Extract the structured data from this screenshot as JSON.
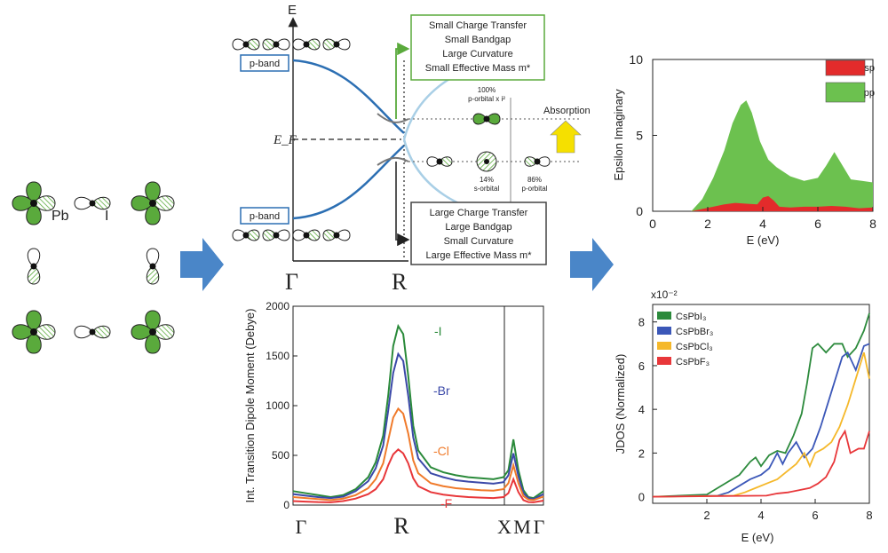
{
  "colors": {
    "green": "#5aaa3c",
    "blue_band": "#2c6fb3",
    "light_band": "#a9cfe6",
    "arrow_blue": "#4a86c8",
    "yellow": "#f5e000",
    "sp_red": "#e32b2b",
    "pp_green": "#6cc14f",
    "I": "#2a8a3a",
    "Br": "#3b49a8",
    "Cl": "#f07a2a",
    "F": "#e8373a",
    "CsPbI3": "#2c8a3c",
    "CsPbBr3": "#3b57b8",
    "CsPbCl3": "#f5b82a",
    "CsPbF3": "#e8373a"
  },
  "orbitals": {
    "pb_label": "Pb",
    "i_label": "I"
  },
  "band": {
    "e_axis": "E",
    "ef_label": "E_F",
    "gamma": "Γ",
    "r": "R",
    "pband_top": "p-band",
    "pband_bottom": "p-band",
    "box_top": [
      "Small Charge Transfer",
      "Small Bandgap",
      "Large Curvature",
      "Small Effective Mass m*"
    ],
    "box_bottom": [
      "Large Charge Transfer",
      "Large Bandgap",
      "Small Curvature",
      "Large Effective Mass m*"
    ],
    "upper_pct": "100%",
    "upper_desc": "p-orbital x i²",
    "absorption": "Absorption",
    "lower_s_pct": "14%",
    "lower_s_desc": "s-orbital",
    "lower_p_pct": "86%",
    "lower_p_desc": "p-orbital"
  },
  "chart_data": [
    {
      "type": "line",
      "title": "",
      "xlabel": "",
      "ylabel": "Int. Transition Dipole Moment (Debye)",
      "ylim": [
        0,
        2000
      ],
      "yticks": [
        0,
        500,
        1000,
        1500,
        2000
      ],
      "xticks": [
        "Γ",
        "R",
        "X",
        "M",
        "Γ"
      ],
      "series_labels": [
        "-I",
        "-Br",
        "-Cl",
        "-F"
      ],
      "series": [
        {
          "name": "-I",
          "x": [
            0,
            0.05,
            0.1,
            0.15,
            0.2,
            0.25,
            0.3,
            0.33,
            0.36,
            0.38,
            0.4,
            0.42,
            0.44,
            0.46,
            0.48,
            0.5,
            0.55,
            0.6,
            0.65,
            0.7,
            0.75,
            0.8,
            0.84,
            0.86,
            0.88,
            0.9,
            0.92,
            0.94,
            0.96,
            1.0
          ],
          "y": [
            140,
            120,
            100,
            80,
            100,
            160,
            280,
            430,
            700,
            1100,
            1600,
            1800,
            1720,
            1300,
            800,
            550,
            380,
            330,
            300,
            280,
            270,
            260,
            280,
            350,
            660,
            350,
            150,
            80,
            70,
            140
          ]
        },
        {
          "name": "-Br",
          "x": [
            0,
            0.05,
            0.1,
            0.15,
            0.2,
            0.25,
            0.3,
            0.33,
            0.36,
            0.38,
            0.4,
            0.42,
            0.44,
            0.46,
            0.48,
            0.5,
            0.55,
            0.6,
            0.65,
            0.7,
            0.75,
            0.8,
            0.84,
            0.86,
            0.88,
            0.9,
            0.92,
            0.94,
            0.96,
            1.0
          ],
          "y": [
            110,
            95,
            80,
            70,
            85,
            140,
            240,
            370,
            600,
            950,
            1330,
            1520,
            1450,
            1100,
            680,
            470,
            320,
            280,
            250,
            235,
            225,
            215,
            230,
            300,
            520,
            290,
            120,
            70,
            60,
            110
          ]
        },
        {
          "name": "-Cl",
          "x": [
            0,
            0.05,
            0.1,
            0.15,
            0.2,
            0.25,
            0.3,
            0.33,
            0.36,
            0.38,
            0.4,
            0.42,
            0.44,
            0.46,
            0.48,
            0.5,
            0.55,
            0.6,
            0.65,
            0.7,
            0.75,
            0.8,
            0.84,
            0.86,
            0.88,
            0.9,
            0.92,
            0.94,
            0.96,
            1.0
          ],
          "y": [
            80,
            70,
            60,
            50,
            65,
            100,
            170,
            260,
            420,
            650,
            880,
            970,
            920,
            720,
            450,
            320,
            220,
            190,
            170,
            160,
            150,
            145,
            160,
            220,
            400,
            220,
            90,
            55,
            50,
            85
          ]
        },
        {
          "name": "-F",
          "x": [
            0,
            0.05,
            0.1,
            0.15,
            0.2,
            0.25,
            0.3,
            0.33,
            0.36,
            0.38,
            0.4,
            0.42,
            0.44,
            0.46,
            0.48,
            0.5,
            0.55,
            0.6,
            0.65,
            0.7,
            0.75,
            0.8,
            0.84,
            0.86,
            0.88,
            0.9,
            0.92,
            0.94,
            0.96,
            1.0
          ],
          "y": [
            40,
            35,
            30,
            28,
            40,
            65,
            110,
            160,
            260,
            400,
            510,
            560,
            520,
            420,
            270,
            190,
            130,
            105,
            90,
            80,
            75,
            70,
            80,
            120,
            260,
            130,
            50,
            30,
            28,
            45
          ]
        }
      ]
    },
    {
      "type": "area",
      "title": "",
      "xlabel": "E (eV)",
      "ylabel": "Epsilon Imaginary",
      "xlim": [
        0,
        8
      ],
      "ylim": [
        0,
        10
      ],
      "xticks": [
        0,
        2,
        4,
        6,
        8
      ],
      "yticks": [
        0,
        5,
        10
      ],
      "legend": "top-right",
      "series": [
        {
          "name": "sp",
          "x": [
            1.4,
            1.8,
            2.2,
            2.6,
            3.0,
            3.4,
            3.8,
            4.0,
            4.2,
            4.4,
            4.6,
            5.0,
            5.5,
            6.0,
            6.5,
            7.0,
            7.5,
            8.0
          ],
          "y": [
            0.0,
            0.15,
            0.3,
            0.45,
            0.55,
            0.5,
            0.45,
            0.9,
            1.0,
            0.7,
            0.3,
            0.25,
            0.3,
            0.3,
            0.35,
            0.3,
            0.2,
            0.25
          ]
        },
        {
          "name": "pp",
          "x": [
            1.4,
            1.8,
            2.2,
            2.6,
            2.9,
            3.2,
            3.4,
            3.6,
            3.9,
            4.2,
            4.5,
            5.0,
            5.5,
            6.0,
            6.3,
            6.6,
            6.9,
            7.2,
            7.6,
            8.0
          ],
          "y": [
            0.0,
            0.8,
            2.2,
            4.0,
            5.8,
            7.0,
            7.3,
            6.5,
            4.6,
            3.4,
            2.9,
            2.3,
            2.0,
            2.2,
            3.0,
            3.9,
            3.0,
            2.1,
            2.0,
            1.9
          ]
        }
      ]
    },
    {
      "type": "line",
      "title": "",
      "xlabel": "E (eV)",
      "ylabel": "JDOS (Normalized)",
      "y_multiplier": "x10⁻²",
      "xlim": [
        0,
        8
      ],
      "ylim": [
        -0.3,
        8.8
      ],
      "xticks": [
        2,
        4,
        6,
        8
      ],
      "yticks": [
        0,
        2,
        4,
        6,
        8
      ],
      "legend": "top-left",
      "series": [
        {
          "name": "CsPbI₃",
          "x": [
            0,
            2.0,
            2.4,
            2.8,
            3.2,
            3.6,
            3.8,
            4.0,
            4.3,
            4.6,
            4.9,
            5.2,
            5.5,
            5.7,
            5.9,
            6.1,
            6.4,
            6.7,
            7.0,
            7.2,
            7.5,
            7.8,
            8.0
          ],
          "y": [
            0,
            0.1,
            0.4,
            0.7,
            1.0,
            1.6,
            1.8,
            1.4,
            1.9,
            2.1,
            2.0,
            2.8,
            3.8,
            5.2,
            6.8,
            7.0,
            6.6,
            7.0,
            7.0,
            6.4,
            6.8,
            7.6,
            8.4
          ]
        },
        {
          "name": "CsPbBr₃",
          "x": [
            0,
            2.4,
            2.8,
            3.2,
            3.6,
            4.0,
            4.3,
            4.6,
            4.8,
            5.0,
            5.3,
            5.6,
            5.9,
            6.2,
            6.5,
            6.8,
            7.0,
            7.2,
            7.5,
            7.8,
            8.0
          ],
          "y": [
            0,
            0.05,
            0.2,
            0.5,
            0.8,
            1.0,
            1.3,
            2.0,
            1.5,
            2.0,
            2.5,
            1.8,
            2.2,
            3.2,
            4.4,
            5.6,
            6.4,
            6.6,
            5.8,
            6.9,
            7.0
          ]
        },
        {
          "name": "CsPbCl₃",
          "x": [
            0,
            3.0,
            3.4,
            3.8,
            4.2,
            4.6,
            5.0,
            5.3,
            5.6,
            5.8,
            6.0,
            6.3,
            6.6,
            6.9,
            7.2,
            7.5,
            7.8,
            8.0
          ],
          "y": [
            0,
            0.05,
            0.2,
            0.4,
            0.6,
            0.8,
            1.2,
            1.5,
            2.0,
            1.4,
            2.0,
            2.2,
            2.5,
            3.2,
            4.2,
            5.4,
            6.6,
            5.4
          ]
        },
        {
          "name": "CsPbF₃",
          "x": [
            0,
            4.2,
            4.6,
            5.0,
            5.4,
            5.8,
            6.1,
            6.4,
            6.7,
            6.9,
            7.1,
            7.3,
            7.6,
            7.8,
            8.0
          ],
          "y": [
            0,
            0.05,
            0.15,
            0.2,
            0.3,
            0.4,
            0.6,
            0.9,
            1.6,
            2.6,
            3.0,
            2.0,
            2.2,
            2.2,
            3.0
          ]
        }
      ]
    }
  ]
}
